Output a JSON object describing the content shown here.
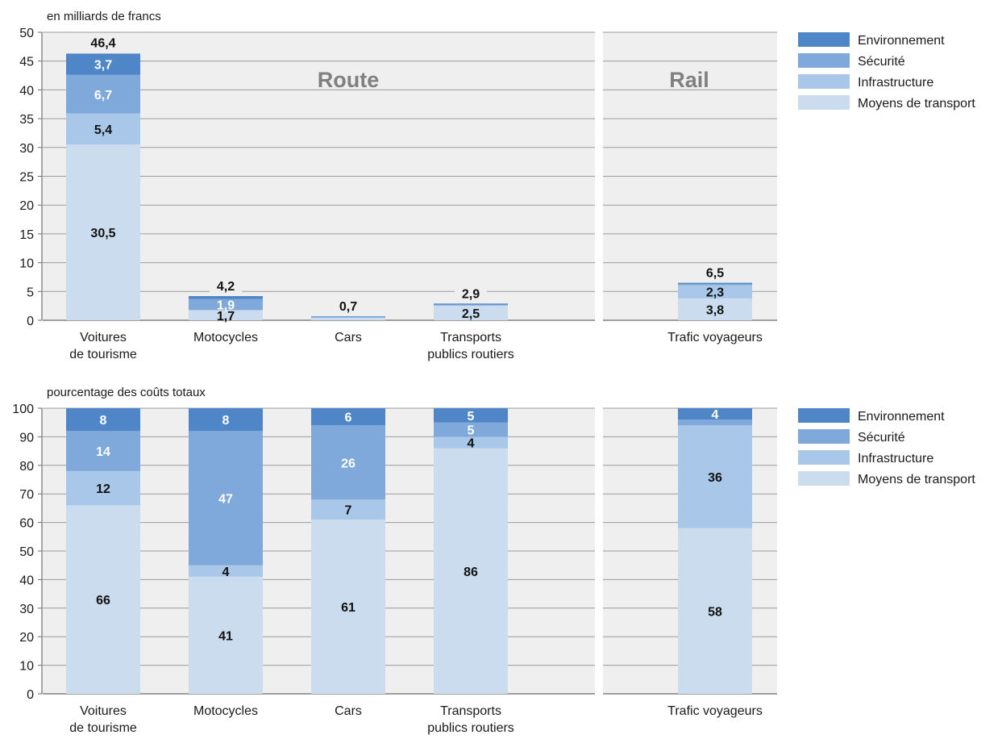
{
  "chart_data": [
    {
      "type": "bar",
      "stacked": true,
      "unit_label": "en milliards de francs",
      "ylim": [
        0,
        50
      ],
      "yticks": [
        0,
        5,
        10,
        15,
        20,
        25,
        30,
        35,
        40,
        45,
        50
      ],
      "grid": true,
      "legend_position": "right",
      "groups": [
        {
          "title": "Route",
          "categories": [
            "Voitures de tourisme",
            "Motocycles",
            "Cars",
            "Transports publics routiers"
          ],
          "category_lines": [
            [
              "Voitures",
              "de tourisme"
            ],
            [
              "Motocycles"
            ],
            [
              "Cars"
            ],
            [
              "Transports",
              "publics routiers"
            ]
          ]
        },
        {
          "title": "Rail",
          "categories": [
            "Trafic voyageurs"
          ],
          "category_lines": [
            [
              "Trafic voyageurs"
            ]
          ]
        }
      ],
      "series": [
        {
          "name": "Moyens de transport",
          "color": "#cbdcef",
          "values": [
            30.5,
            1.7,
            0.4,
            2.5,
            3.8
          ],
          "labels": [
            "30,5",
            "1,7",
            "",
            "2,5",
            "3,8"
          ],
          "label_colors": [
            "#111111",
            "#111111",
            "",
            "#111111",
            "#111111"
          ]
        },
        {
          "name": "Infrastructure",
          "color": "#a9c7e8",
          "values": [
            5.4,
            0.1,
            0.1,
            0.1,
            2.3
          ],
          "labels": [
            "5,4",
            "",
            "",
            "",
            "2,3"
          ],
          "label_colors": [
            "#111111",
            "",
            "",
            "",
            "#111111"
          ]
        },
        {
          "name": "Sécurité",
          "color": "#7fa9da",
          "values": [
            6.7,
            1.9,
            0.1,
            0.1,
            0.2
          ],
          "labels": [
            "6,7",
            "1,9",
            "",
            "",
            ""
          ],
          "label_colors": [
            "#ffffff",
            "#ffffff",
            "",
            "",
            ""
          ]
        },
        {
          "name": "Environnement",
          "color": "#4f86c8",
          "values": [
            3.7,
            0.5,
            0.1,
            0.2,
            0.2
          ],
          "labels": [
            "3,7",
            "",
            "",
            "",
            ""
          ],
          "label_colors": [
            "#ffffff",
            "",
            "",
            "",
            ""
          ]
        }
      ],
      "totals": [
        46.4,
        4.2,
        0.7,
        2.9,
        6.5
      ],
      "total_labels": [
        "46,4",
        "4,2",
        "0,7",
        "2,9",
        "6,5"
      ]
    },
    {
      "type": "bar",
      "stacked": true,
      "unit_label": "pourcentage des coûts totaux",
      "ylim": [
        0,
        100
      ],
      "yticks": [
        0,
        10,
        20,
        30,
        40,
        50,
        60,
        70,
        80,
        90,
        100
      ],
      "grid": true,
      "legend_position": "right",
      "groups": [
        {
          "title": "",
          "categories": [
            "Voitures de tourisme",
            "Motocycles",
            "Cars",
            "Transports publics routiers"
          ],
          "category_lines": [
            [
              "Voitures",
              "de tourisme"
            ],
            [
              "Motocycles"
            ],
            [
              "Cars"
            ],
            [
              "Transports",
              "publics routiers"
            ]
          ]
        },
        {
          "title": "",
          "categories": [
            "Trafic voyageurs"
          ],
          "category_lines": [
            [
              "Trafic voyageurs"
            ]
          ]
        }
      ],
      "series": [
        {
          "name": "Moyens de transport",
          "color": "#cbdcef",
          "values": [
            66,
            41,
            61,
            86,
            58
          ],
          "labels": [
            "66",
            "41",
            "61",
            "86",
            "58"
          ],
          "label_colors": [
            "#111111",
            "#111111",
            "#111111",
            "#111111",
            "#111111"
          ]
        },
        {
          "name": "Infrastructure",
          "color": "#a9c7e8",
          "values": [
            12,
            4,
            7,
            4,
            36
          ],
          "labels": [
            "12",
            "4",
            "7",
            "4",
            "36"
          ],
          "label_colors": [
            "#111111",
            "#111111",
            "#111111",
            "#111111",
            "#111111"
          ]
        },
        {
          "name": "Sécurité",
          "color": "#7fa9da",
          "values": [
            14,
            47,
            26,
            5,
            2
          ],
          "labels": [
            "14",
            "47",
            "26",
            "5",
            ""
          ],
          "label_colors": [
            "#ffffff",
            "#ffffff",
            "#ffffff",
            "#ffffff",
            ""
          ]
        },
        {
          "name": "Environnement",
          "color": "#4f86c8",
          "values": [
            8,
            8,
            6,
            5,
            4
          ],
          "labels": [
            "8",
            "8",
            "6",
            "5",
            "4"
          ],
          "label_colors": [
            "#ffffff",
            "#ffffff",
            "#ffffff",
            "#ffffff",
            "#ffffff"
          ]
        }
      ]
    }
  ]
}
